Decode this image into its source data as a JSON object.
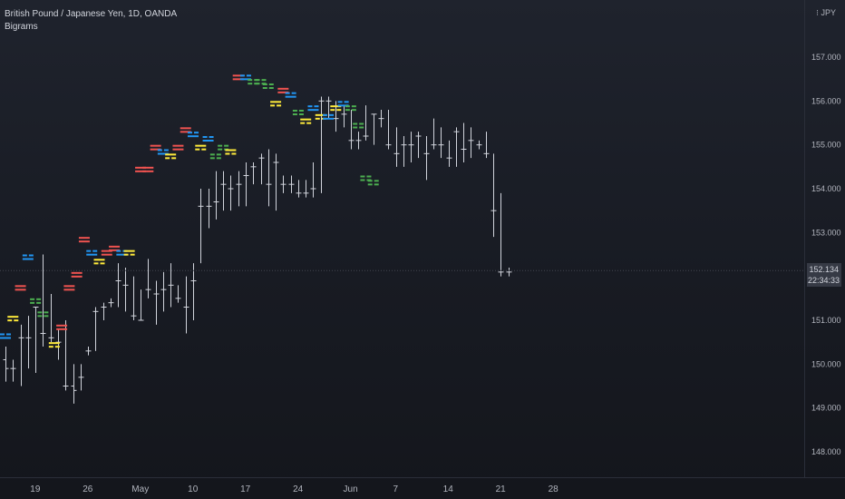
{
  "header": {
    "symbol_line": "British Pound / Japanese Yen, 1D, OANDA",
    "indicator": "Bigrams",
    "currency": "JPY"
  },
  "price_box": {
    "price": "152.134",
    "countdown": "22:34:33"
  },
  "colors": {
    "red": "#ef5350",
    "yellow": "#ffeb3b",
    "blue": "#2196f3",
    "green": "#4caf50",
    "bar": "#d1d4dc",
    "axis_text": "#b2b5be"
  },
  "chart_data": {
    "type": "ohlc",
    "title": "British Pound / Japanese Yen, 1D, OANDA",
    "ylim": [
      147.5,
      157.7
    ],
    "y_ticks": [
      "148.000",
      "149.000",
      "150.000",
      "151.000",
      "152.000",
      "153.000",
      "154.000",
      "155.000",
      "156.000",
      "157.000"
    ],
    "x_ticks": [
      "19",
      "26",
      "May",
      "10",
      "17",
      "24",
      "Jun",
      "7",
      "14",
      "21",
      "28"
    ],
    "x_tick_bar_index": [
      3,
      10,
      17,
      24,
      31,
      38,
      45,
      51,
      58,
      65,
      72
    ],
    "ohlc": [
      [
        150.1,
        150.4,
        149.6,
        149.9
      ],
      [
        149.9,
        150.1,
        149.6,
        149.9
      ],
      [
        150.6,
        150.9,
        149.5,
        150.6
      ],
      [
        150.6,
        151.1,
        149.9,
        150.6
      ],
      [
        151.3,
        151.3,
        149.8,
        151.3
      ],
      [
        150.7,
        152.5,
        150.4,
        150.7
      ],
      [
        150.6,
        151.6,
        150.5,
        150.6
      ],
      [
        150.5,
        150.8,
        150.1,
        150.5
      ],
      [
        149.5,
        151.0,
        149.4,
        149.5
      ],
      [
        149.5,
        150.0,
        149.1,
        149.4
      ],
      [
        149.7,
        150.0,
        149.4,
        149.7
      ],
      [
        150.3,
        150.4,
        150.2,
        150.3
      ],
      [
        151.2,
        151.3,
        150.3,
        151.2
      ],
      [
        151.3,
        151.4,
        151.0,
        151.3
      ],
      [
        151.4,
        151.5,
        151.3,
        151.4
      ],
      [
        151.9,
        152.3,
        151.3,
        151.9
      ],
      [
        151.8,
        152.2,
        151.2,
        151.8
      ],
      [
        151.1,
        152.0,
        151.0,
        151.1
      ],
      [
        151.0,
        151.7,
        151.0,
        151.0
      ],
      [
        151.7,
        152.4,
        151.5,
        151.7
      ],
      [
        151.6,
        151.9,
        150.9,
        151.6
      ],
      [
        151.7,
        152.1,
        151.2,
        151.7
      ],
      [
        151.8,
        152.3,
        151.3,
        151.8
      ],
      [
        151.5,
        151.8,
        151.4,
        151.5
      ],
      [
        151.3,
        152.0,
        150.7,
        151.3
      ],
      [
        151.9,
        152.3,
        151.0,
        151.9
      ],
      [
        153.6,
        154.0,
        152.3,
        153.6
      ],
      [
        153.6,
        154.0,
        153.1,
        153.6
      ],
      [
        153.7,
        154.4,
        153.3,
        153.7
      ],
      [
        154.1,
        154.4,
        153.5,
        154.1
      ],
      [
        154.0,
        154.3,
        153.5,
        154.0
      ],
      [
        154.1,
        154.4,
        153.6,
        154.1
      ],
      [
        154.3,
        154.6,
        153.6,
        154.3
      ],
      [
        154.5,
        154.6,
        154.1,
        154.5
      ],
      [
        154.7,
        154.8,
        154.1,
        154.7
      ],
      [
        154.1,
        154.9,
        153.6,
        154.1
      ],
      [
        154.6,
        154.8,
        153.5,
        154.6
      ],
      [
        154.1,
        154.3,
        153.9,
        154.1
      ],
      [
        154.1,
        154.3,
        153.9,
        154.1
      ],
      [
        153.9,
        154.2,
        153.8,
        153.9
      ],
      [
        153.9,
        154.2,
        153.8,
        153.9
      ],
      [
        154.0,
        154.6,
        153.8,
        154.0
      ],
      [
        156.0,
        156.1,
        153.9,
        156.0
      ],
      [
        156.0,
        156.1,
        155.6,
        156.0
      ],
      [
        155.6,
        156.0,
        155.3,
        155.6
      ],
      [
        155.7,
        155.9,
        155.4,
        155.7
      ],
      [
        155.1,
        155.8,
        154.9,
        155.1
      ],
      [
        155.1,
        155.3,
        154.9,
        155.1
      ],
      [
        155.2,
        155.9,
        155.1,
        155.2
      ],
      [
        155.7,
        155.7,
        155.0,
        155.7
      ],
      [
        155.6,
        155.8,
        155.4,
        155.6
      ],
      [
        155.0,
        155.8,
        154.9,
        155.0
      ],
      [
        154.8,
        155.4,
        154.5,
        154.8
      ],
      [
        155.0,
        155.2,
        154.5,
        155.0
      ],
      [
        155.0,
        155.3,
        154.6,
        155.0
      ],
      [
        155.2,
        155.3,
        154.7,
        155.2
      ],
      [
        154.8,
        155.2,
        154.2,
        154.8
      ],
      [
        155.0,
        155.6,
        154.9,
        155.0
      ],
      [
        155.0,
        155.4,
        154.7,
        155.0
      ],
      [
        154.7,
        155.1,
        154.5,
        154.7
      ],
      [
        155.3,
        155.4,
        154.5,
        155.3
      ],
      [
        154.9,
        155.5,
        154.6,
        154.9
      ],
      [
        155.1,
        155.4,
        154.7,
        155.1
      ],
      [
        155.0,
        155.1,
        154.9,
        155.0
      ],
      [
        154.8,
        155.3,
        154.7,
        154.8
      ],
      [
        153.5,
        154.8,
        152.9,
        153.5
      ],
      [
        152.1,
        153.9,
        152.0,
        152.1
      ],
      [
        152.1,
        152.2,
        152.0,
        152.1
      ]
    ],
    "bigrams": [
      {
        "i": 0,
        "color": "blue",
        "y": 150.7
      },
      {
        "i": 2,
        "color": "yellow",
        "y": 151.1
      },
      {
        "i": 4,
        "color": "red",
        "y": 151.8
      },
      {
        "i": 6,
        "color": "blue",
        "y": 152.5
      },
      {
        "i": 8,
        "color": "green",
        "y": 151.5
      },
      {
        "i": 10,
        "color": "green",
        "y": 151.2
      },
      {
        "i": 13,
        "color": "yellow",
        "y": 150.5
      },
      {
        "i": 15,
        "color": "red",
        "y": 150.9
      },
      {
        "i": 17,
        "color": "red",
        "y": 151.8
      },
      {
        "i": 19,
        "color": "red",
        "y": 152.1
      },
      {
        "i": 21,
        "color": "red",
        "y": 152.9
      },
      {
        "i": 23,
        "color": "blue",
        "y": 152.6
      },
      {
        "i": 25,
        "color": "yellow",
        "y": 152.4
      },
      {
        "i": 27,
        "color": "red",
        "y": 152.6
      },
      {
        "i": 29,
        "color": "red",
        "y": 152.7
      },
      {
        "i": 31,
        "color": "blue",
        "y": 152.6
      },
      {
        "i": 33,
        "color": "yellow",
        "y": 152.6
      },
      {
        "i": 36,
        "color": "red",
        "y": 154.5
      },
      {
        "i": 38,
        "color": "red",
        "y": 154.5
      },
      {
        "i": 40,
        "color": "red",
        "y": 155.0
      },
      {
        "i": 42,
        "color": "blue",
        "y": 154.9
      },
      {
        "i": 44,
        "color": "yellow",
        "y": 154.8
      },
      {
        "i": 46,
        "color": "red",
        "y": 155.0
      },
      {
        "i": 48,
        "color": "red",
        "y": 155.4
      },
      {
        "i": 50,
        "color": "blue",
        "y": 155.3
      },
      {
        "i": 52,
        "color": "yellow",
        "y": 155.0
      },
      {
        "i": 54,
        "color": "blue",
        "y": 155.2
      },
      {
        "i": 56,
        "color": "green",
        "y": 154.8
      },
      {
        "i": 58,
        "color": "green",
        "y": 155.0
      },
      {
        "i": 60,
        "color": "yellow",
        "y": 154.9
      },
      {
        "i": 62,
        "color": "red",
        "y": 156.6
      },
      {
        "i": 64,
        "color": "blue",
        "y": 156.6
      },
      {
        "i": 66,
        "color": "green",
        "y": 156.5
      },
      {
        "i": 68,
        "color": "green",
        "y": 156.5
      },
      {
        "i": 70,
        "color": "green",
        "y": 156.4
      },
      {
        "i": 72,
        "color": "yellow",
        "y": 156.0
      },
      {
        "i": 74,
        "color": "red",
        "y": 156.3
      },
      {
        "i": 76,
        "color": "blue",
        "y": 156.2
      },
      {
        "i": 78,
        "color": "green",
        "y": 155.8
      },
      {
        "i": 80,
        "color": "yellow",
        "y": 155.6
      },
      {
        "i": 82,
        "color": "blue",
        "y": 155.9
      },
      {
        "i": 84,
        "color": "yellow",
        "y": 155.7
      },
      {
        "i": 86,
        "color": "blue",
        "y": 155.7
      },
      {
        "i": 88,
        "color": "yellow",
        "y": 155.9
      },
      {
        "i": 90,
        "color": "blue",
        "y": 156.0
      },
      {
        "i": 92,
        "color": "green",
        "y": 155.9
      },
      {
        "i": 94,
        "color": "green",
        "y": 155.5
      },
      {
        "i": 96,
        "color": "green",
        "y": 154.3
      },
      {
        "i": 98,
        "color": "green",
        "y": 154.2
      }
    ],
    "bigram_x_step": 0.5,
    "last_price": 152.134
  }
}
